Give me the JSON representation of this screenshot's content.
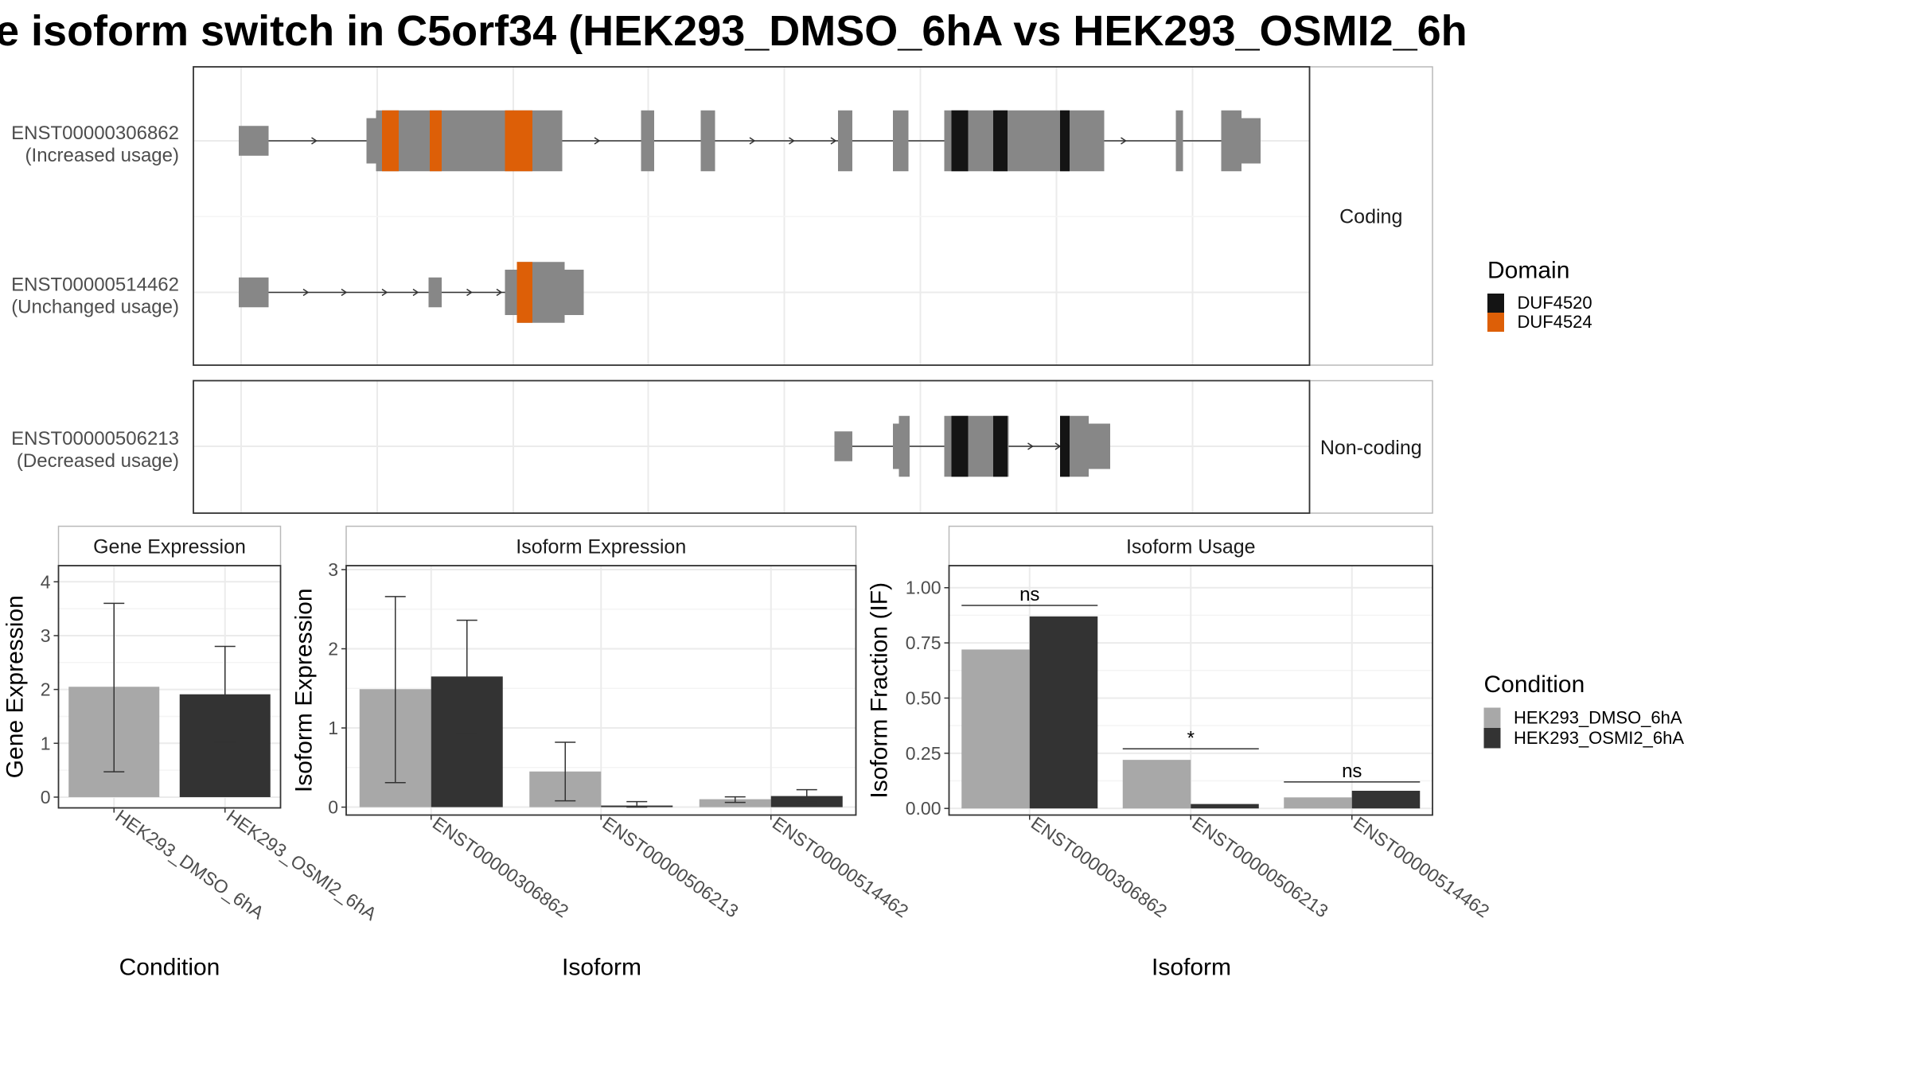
{
  "title": "e isoform switch in C5orf34 (HEK293_DMSO_6hA vs HEK293_OSMI2_6h",
  "colors": {
    "exon": "#878787",
    "duf4520": "#141414",
    "duf4524": "#dd5f07",
    "cond1": "#a8a8a8",
    "cond2": "#333333",
    "grid": "#ebebeb",
    "strip_bg": "#ffffff"
  },
  "structure": {
    "panels": [
      {
        "label": "Coding",
        "tracks": [
          {
            "id": "ENST00000306862",
            "note": "(Increased usage)",
            "exons": [
              [
                200,
                225,
                "t"
              ],
              [
                307,
                315,
                "m"
              ],
              [
                315,
                449,
                "b"
              ],
              [
                449,
                471,
                "b"
              ],
              [
                537,
                548,
                "b"
              ],
              [
                587,
                599,
                "b"
              ],
              [
                702,
                714,
                "b"
              ],
              [
                748,
                761,
                "b"
              ],
              [
                791,
                925,
                "b"
              ],
              [
                985,
                991,
                "b"
              ],
              [
                1023,
                1040,
                "b"
              ],
              [
                1040,
                1056,
                "m"
              ]
            ],
            "domains": [
              [
                320,
                334,
                "DUF4524"
              ],
              [
                360,
                370,
                "DUF4524"
              ],
              [
                423,
                446,
                "DUF4524"
              ],
              [
                797,
                811,
                "DUF4520"
              ],
              [
                832,
                844,
                "DUF4520"
              ],
              [
                888,
                896,
                "DUF4520"
              ]
            ],
            "arrows": [
              265,
              395,
              502,
              632,
              665,
              700,
              888,
              943
            ]
          },
          {
            "id": "ENST00000514462",
            "note": "(Unchanged usage)",
            "exons": [
              [
                200,
                225,
                "t"
              ],
              [
                359,
                370,
                "t"
              ],
              [
                423,
                433,
                "m"
              ],
              [
                433,
                473,
                "b"
              ],
              [
                473,
                489,
                "m"
              ]
            ],
            "domains": [
              [
                433,
                446,
                "DUF4524"
              ]
            ],
            "arrows": [
              258,
              290,
              324,
              350,
              395,
              420
            ]
          }
        ]
      },
      {
        "label": "Non-coding",
        "tracks": [
          {
            "id": "ENST00000506213",
            "note": "(Decreased usage)",
            "exons": [
              [
                699,
                714,
                "t"
              ],
              [
                748,
                753,
                "m"
              ],
              [
                753,
                762,
                "b"
              ],
              [
                791,
                795,
                "b"
              ],
              [
                795,
                845,
                "b"
              ],
              [
                888,
                912,
                "b"
              ],
              [
                912,
                930,
                "m"
              ]
            ],
            "domains": [
              [
                797,
                811,
                "DUF4520"
              ],
              [
                832,
                844,
                "DUF4520"
              ],
              [
                888,
                896,
                "DUF4520"
              ]
            ],
            "arrows": [
              865,
              888
            ]
          }
        ]
      }
    ],
    "gridlines": [
      202,
      316,
      430,
      543,
      657,
      771,
      885,
      999
    ]
  },
  "domain_legend": {
    "title": "Domain",
    "items": [
      {
        "label": "DUF4520",
        "color": "#141414"
      },
      {
        "label": "DUF4524",
        "color": "#dd5f07"
      }
    ]
  },
  "condition_legend": {
    "title": "Condition",
    "items": [
      {
        "label": "HEK293_DMSO_6hA",
        "color": "#a8a8a8"
      },
      {
        "label": "HEK293_OSMI2_6hA",
        "color": "#333333"
      }
    ]
  },
  "chart_data": [
    {
      "type": "bar",
      "title": "Gene Expression",
      "xlabel": "Condition",
      "ylabel": "Gene Expression",
      "ylim": [
        -0.2,
        4.3
      ],
      "yticks": [
        0,
        1,
        2,
        3,
        4
      ],
      "ytick_labels": [
        "0",
        "1",
        "2",
        "3",
        "4"
      ],
      "categories": [
        "HEK293_DMSO_6hA",
        "HEK293_OSMI2_6hA"
      ],
      "series": [
        {
          "name": "HEK293_DMSO_6hA",
          "values": [
            2.05,
            null
          ],
          "error_low": [
            0.47,
            null
          ],
          "error_high": [
            3.6,
            null
          ]
        },
        {
          "name": "HEK293_OSMI2_6hA",
          "values": [
            null,
            1.91
          ],
          "error_low": [
            null,
            1.02
          ],
          "error_high": [
            null,
            2.8
          ]
        }
      ]
    },
    {
      "type": "bar",
      "title": "Isoform Expression",
      "xlabel": "Isoform",
      "ylabel": "Isoform Expression",
      "ylim": [
        -0.1,
        3.05
      ],
      "yticks": [
        0,
        1,
        2,
        3
      ],
      "ytick_labels": [
        "0",
        "1",
        "2",
        "3"
      ],
      "categories": [
        "ENST00000306862",
        "ENST00000506213",
        "ENST00000514462"
      ],
      "series": [
        {
          "name": "HEK293_DMSO_6hA",
          "values": [
            1.49,
            0.45,
            0.1
          ],
          "error_low": [
            0.31,
            0.08,
            0.06
          ],
          "error_high": [
            2.66,
            0.82,
            0.13
          ]
        },
        {
          "name": "HEK293_OSMI2_6hA",
          "values": [
            1.65,
            0.02,
            0.14
          ],
          "error_low": [
            0.93,
            0.0,
            0.06
          ],
          "error_high": [
            2.36,
            0.07,
            0.22
          ]
        }
      ]
    },
    {
      "type": "bar",
      "title": "Isoform Usage",
      "xlabel": "Isoform",
      "ylabel": "Isoform Fraction (IF)",
      "ylim": [
        -0.03,
        1.1
      ],
      "yticks": [
        0,
        0.25,
        0.5,
        0.75,
        1.0
      ],
      "ytick_labels": [
        "0.00",
        "0.25",
        "0.50",
        "0.75",
        "1.00"
      ],
      "categories": [
        "ENST00000306862",
        "ENST00000506213",
        "ENST00000514462"
      ],
      "series": [
        {
          "name": "HEK293_DMSO_6hA",
          "values": [
            0.72,
            0.22,
            0.05
          ]
        },
        {
          "name": "HEK293_OSMI2_6hA",
          "values": [
            0.87,
            0.02,
            0.08
          ]
        }
      ],
      "significance": [
        {
          "label": "ns",
          "y": 0.92
        },
        {
          "label": "*",
          "y": 0.27
        },
        {
          "label": "ns",
          "y": 0.12
        }
      ]
    }
  ]
}
